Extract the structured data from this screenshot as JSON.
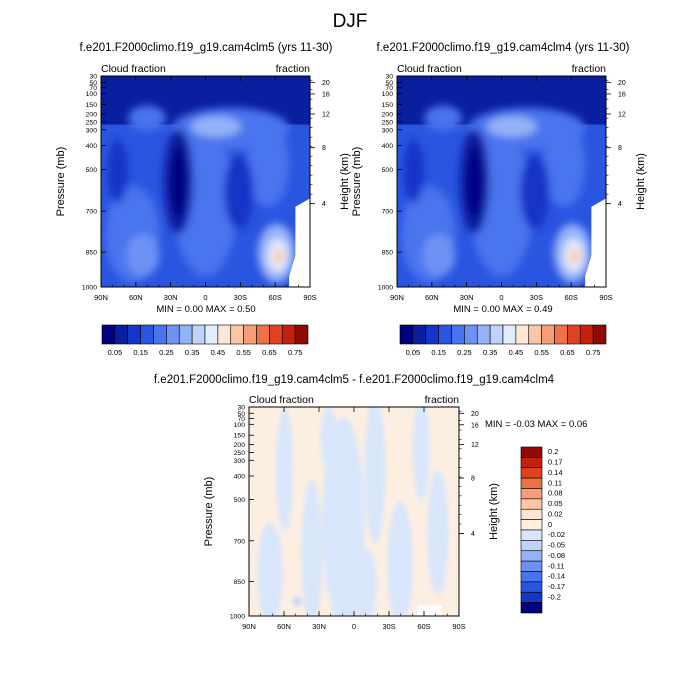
{
  "figure": {
    "title": "DJF"
  },
  "chart_data": [
    {
      "type": "heatmap",
      "title": "f.e201.F2000climo.f19_g19.cam4clm5 (yrs 11-30)",
      "left_label": "Cloud fraction",
      "right_label": "fraction",
      "xlabel": "",
      "ylabel": "Pressure (mb)",
      "ylabel_right": "Height (km)",
      "x_ticks": [
        "90N",
        "60N",
        "30N",
        "0",
        "30S",
        "60S",
        "90S"
      ],
      "y_ticks": [
        "30",
        "50",
        "70",
        "100",
        "150",
        "200",
        "250",
        "300",
        "400",
        "500",
        "700",
        "850",
        "1000"
      ],
      "y_ticks_right": [
        "20",
        "16",
        "12",
        "8",
        "4"
      ],
      "stats": "MIN =  0.00  MAX =   0.50",
      "colorbar_labels": [
        "0.05",
        "0.15",
        "0.25",
        "0.35",
        "0.45",
        "0.55",
        "0.65",
        "0.75"
      ],
      "colorbar_colors": [
        "#000080",
        "#0a1fa0",
        "#1436c8",
        "#2a55e0",
        "#4a74ee",
        "#6d92f4",
        "#95b2f7",
        "#bed2fa",
        "#e3ecfd",
        "#fde6d6",
        "#fbc6a6",
        "#f69e77",
        "#ef7148",
        "#e0421e",
        "#c4200b",
        "#8f0a02"
      ],
      "levels": [
        0.05,
        0.1,
        0.15,
        0.2,
        0.25,
        0.3,
        0.35,
        0.4,
        0.45,
        0.5,
        0.55,
        0.6,
        0.65,
        0.7,
        0.75
      ]
    },
    {
      "type": "heatmap",
      "title": "f.e201.F2000climo.f19_g19.cam4clm4 (yrs 11-30)",
      "left_label": "Cloud fraction",
      "right_label": "fraction",
      "xlabel": "",
      "ylabel": "Pressure (mb)",
      "ylabel_right": "Height (km)",
      "x_ticks": [
        "90N",
        "60N",
        "30N",
        "0",
        "30S",
        "60S",
        "90S"
      ],
      "y_ticks": [
        "30",
        "50",
        "70",
        "100",
        "150",
        "200",
        "250",
        "300",
        "400",
        "500",
        "700",
        "850",
        "1000"
      ],
      "y_ticks_right": [
        "20",
        "16",
        "12",
        "8",
        "4"
      ],
      "stats": "MIN =  0.00  MAX =   0.49",
      "colorbar_labels": [
        "0.05",
        "0.15",
        "0.25",
        "0.35",
        "0.45",
        "0.55",
        "0.65",
        "0.75"
      ],
      "colorbar_colors": [
        "#000080",
        "#0a1fa0",
        "#1436c8",
        "#2a55e0",
        "#4a74ee",
        "#6d92f4",
        "#95b2f7",
        "#bed2fa",
        "#e3ecfd",
        "#fde6d6",
        "#fbc6a6",
        "#f69e77",
        "#ef7148",
        "#e0421e",
        "#c4200b",
        "#8f0a02"
      ],
      "levels": [
        0.05,
        0.1,
        0.15,
        0.2,
        0.25,
        0.3,
        0.35,
        0.4,
        0.45,
        0.5,
        0.55,
        0.6,
        0.65,
        0.7,
        0.75
      ]
    },
    {
      "type": "heatmap",
      "title": "f.e201.F2000climo.f19_g19.cam4clm5 - f.e201.F2000climo.f19_g19.cam4clm4",
      "left_label": "Cloud fraction",
      "right_label": "fraction",
      "xlabel": "",
      "ylabel": "Pressure (mb)",
      "ylabel_right": "Height (km)",
      "x_ticks": [
        "90N",
        "60N",
        "30N",
        "0",
        "30S",
        "60S",
        "90S"
      ],
      "y_ticks": [
        "30",
        "50",
        "70",
        "100",
        "150",
        "200",
        "250",
        "300",
        "400",
        "500",
        "700",
        "850",
        "1000"
      ],
      "y_ticks_right": [
        "20",
        "16",
        "12",
        "8",
        "4"
      ],
      "stats": "MIN =  -0.03  MAX =   0.06",
      "colorbar_labels": [
        "0.2",
        "0.17",
        "0.14",
        "0.11",
        "0.08",
        "0.05",
        "0.02",
        "0",
        "-0.02",
        "-0.05",
        "-0.08",
        "-0.11",
        "-0.14",
        "-0.17",
        "-0.2"
      ],
      "colorbar_colors": [
        "#8f0a02",
        "#c4200b",
        "#e0421e",
        "#ef7148",
        "#f69e77",
        "#fbc6a6",
        "#fde6d6",
        "#fdeee2",
        "#d8e6fb",
        "#bed2fa",
        "#95b2f7",
        "#6d92f4",
        "#4a74ee",
        "#2a55e0",
        "#1436c8",
        "#000080"
      ],
      "levels": [
        -0.2,
        -0.17,
        -0.14,
        -0.11,
        -0.08,
        -0.05,
        -0.02,
        0,
        0.02,
        0.05,
        0.08,
        0.11,
        0.14,
        0.17,
        0.2
      ]
    }
  ]
}
